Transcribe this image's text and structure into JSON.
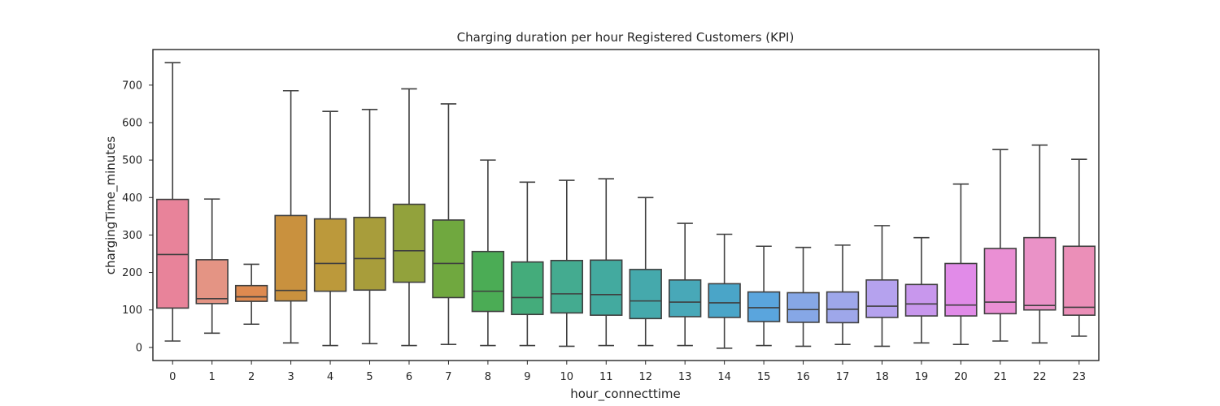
{
  "chart_data": {
    "type": "box",
    "title": "Charging duration per hour Registered Customers (KPI)",
    "xlabel": "hour_connecttime",
    "ylabel": "chargingTime_minutes",
    "ylim": [
      -35,
      795
    ],
    "yticks": [
      0,
      100,
      200,
      300,
      400,
      500,
      600,
      700
    ],
    "grid": false,
    "categories": [
      "0",
      "1",
      "2",
      "3",
      "4",
      "5",
      "6",
      "7",
      "8",
      "9",
      "10",
      "11",
      "12",
      "13",
      "14",
      "15",
      "16",
      "17",
      "18",
      "19",
      "20",
      "21",
      "22",
      "23"
    ],
    "boxes": [
      {
        "whisker_low": 17,
        "q1": 105,
        "median": 248,
        "q3": 395,
        "whisker_high": 760,
        "color": "#e8839a"
      },
      {
        "whisker_low": 38,
        "q1": 117,
        "median": 130,
        "q3": 234,
        "whisker_high": 396,
        "color": "#e49484"
      },
      {
        "whisker_low": 62,
        "q1": 123,
        "median": 135,
        "q3": 165,
        "whisker_high": 222,
        "color": "#de8a50"
      },
      {
        "whisker_low": 12,
        "q1": 124,
        "median": 152,
        "q3": 352,
        "whisker_high": 685,
        "color": "#c9913e"
      },
      {
        "whisker_low": 5,
        "q1": 150,
        "median": 224,
        "q3": 343,
        "whisker_high": 630,
        "color": "#bc993b"
      },
      {
        "whisker_low": 10,
        "q1": 153,
        "median": 237,
        "q3": 347,
        "whisker_high": 635,
        "color": "#a89d3b"
      },
      {
        "whisker_low": 5,
        "q1": 174,
        "median": 258,
        "q3": 382,
        "whisker_high": 690,
        "color": "#92a23c"
      },
      {
        "whisker_low": 8,
        "q1": 133,
        "median": 224,
        "q3": 340,
        "whisker_high": 650,
        "color": "#70a83f"
      },
      {
        "whisker_low": 5,
        "q1": 96,
        "median": 150,
        "q3": 256,
        "whisker_high": 500,
        "color": "#4bac55"
      },
      {
        "whisker_low": 5,
        "q1": 88,
        "median": 133,
        "q3": 228,
        "whisker_high": 441,
        "color": "#44ac7b"
      },
      {
        "whisker_low": 3,
        "q1": 92,
        "median": 143,
        "q3": 232,
        "whisker_high": 446,
        "color": "#44ab90"
      },
      {
        "whisker_low": 5,
        "q1": 86,
        "median": 141,
        "q3": 233,
        "whisker_high": 450,
        "color": "#43aa9f"
      },
      {
        "whisker_low": 5,
        "q1": 77,
        "median": 124,
        "q3": 208,
        "whisker_high": 400,
        "color": "#45a9ac"
      },
      {
        "whisker_low": 5,
        "q1": 82,
        "median": 121,
        "q3": 180,
        "whisker_high": 331,
        "color": "#48a8b8"
      },
      {
        "whisker_low": -2,
        "q1": 80,
        "median": 119,
        "q3": 170,
        "whisker_high": 302,
        "color": "#4aa5c8"
      },
      {
        "whisker_low": 5,
        "q1": 69,
        "median": 106,
        "q3": 148,
        "whisker_high": 270,
        "color": "#5aa5dd"
      },
      {
        "whisker_low": 3,
        "q1": 67,
        "median": 101,
        "q3": 146,
        "whisker_high": 267,
        "color": "#86a7e6"
      },
      {
        "whisker_low": 8,
        "q1": 66,
        "median": 102,
        "q3": 148,
        "whisker_high": 273,
        "color": "#9ea7ea"
      },
      {
        "whisker_low": 3,
        "q1": 80,
        "median": 110,
        "q3": 180,
        "whisker_high": 325,
        "color": "#b5a2ee"
      },
      {
        "whisker_low": 12,
        "q1": 84,
        "median": 116,
        "q3": 168,
        "whisker_high": 293,
        "color": "#c897ed"
      },
      {
        "whisker_low": 8,
        "q1": 84,
        "median": 113,
        "q3": 224,
        "whisker_high": 436,
        "color": "#e18be8"
      },
      {
        "whisker_low": 17,
        "q1": 90,
        "median": 121,
        "q3": 264,
        "whisker_high": 528,
        "color": "#ea8fd4"
      },
      {
        "whisker_low": 12,
        "q1": 100,
        "median": 112,
        "q3": 293,
        "whisker_high": 540,
        "color": "#ea92c7"
      },
      {
        "whisker_low": 30,
        "q1": 86,
        "median": 107,
        "q3": 270,
        "whisker_high": 502,
        "color": "#eb8fb8"
      }
    ]
  }
}
